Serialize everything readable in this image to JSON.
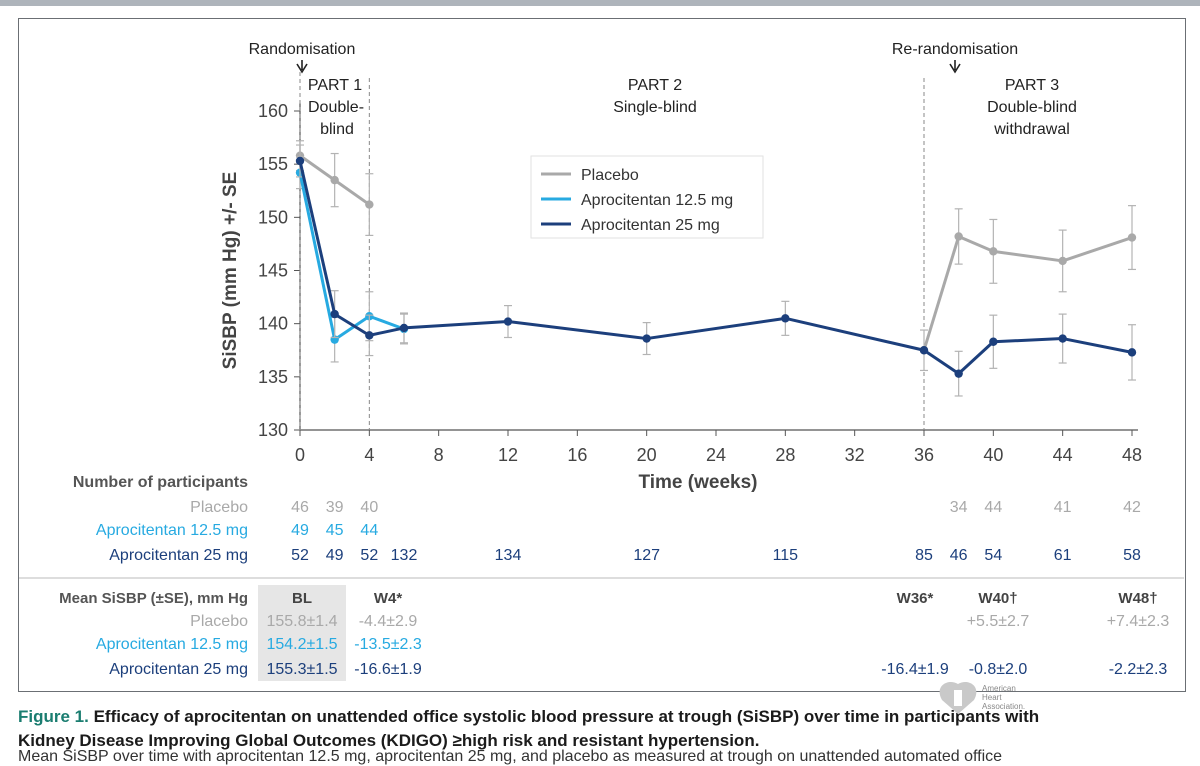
{
  "chart_data": {
    "type": "line",
    "ylabel": "SiSBP (mm Hg) +/- SE",
    "xlabel": "Time (weeks)",
    "ylim": [
      130,
      160
    ],
    "yticks": [
      130,
      135,
      140,
      145,
      150,
      155,
      160
    ],
    "xlim": [
      0,
      48
    ],
    "xticks": [
      0,
      4,
      8,
      12,
      16,
      20,
      24,
      28,
      32,
      36,
      40,
      44,
      48
    ],
    "annotations": {
      "randomisation": "Randomisation",
      "rerandomisation": "Re-randomisation",
      "part1_line1": "PART 1",
      "part1_line2": "Double-",
      "part1_line3": "blind",
      "part2_line1": "PART 2",
      "part2_line2": "Single-blind",
      "part3_line1": "PART 3",
      "part3_line2": "Double-blind",
      "part3_line3": "withdrawal"
    },
    "legend": {
      "placement": "top-center"
    },
    "series": [
      {
        "name": "Placebo",
        "color": "#a9a9a9",
        "points": [
          {
            "x": 0,
            "y": 155.8,
            "se": 1.4
          },
          {
            "x": 2,
            "y": 153.5,
            "se": 2.5
          },
          {
            "x": 4,
            "y": 151.2,
            "se": 2.9
          },
          {
            "x": 36,
            "y": 137.5,
            "se": 0
          },
          {
            "x": 38,
            "y": 148.2,
            "se": 2.6
          },
          {
            "x": 40,
            "y": 146.8,
            "se": 3.0
          },
          {
            "x": 44,
            "y": 145.9,
            "se": 2.9
          },
          {
            "x": 48,
            "y": 148.1,
            "se": 3.0
          }
        ]
      },
      {
        "name": "Aprocitentan 12.5 mg",
        "color": "#27aae1",
        "points": [
          {
            "x": 0,
            "y": 154.2,
            "se": 1.5
          },
          {
            "x": 2,
            "y": 138.5,
            "se": 2.1
          },
          {
            "x": 4,
            "y": 140.7,
            "se": 2.3
          },
          {
            "x": 6,
            "y": 139.5,
            "se": 1.4
          }
        ]
      },
      {
        "name": "Aprocitentan 25 mg",
        "color": "#1c3f7c",
        "points": [
          {
            "x": 0,
            "y": 155.3,
            "se": 1.5
          },
          {
            "x": 2,
            "y": 140.9,
            "se": 2.2
          },
          {
            "x": 4,
            "y": 138.9,
            "se": 1.9
          },
          {
            "x": 6,
            "y": 139.6,
            "se": 1.4
          },
          {
            "x": 12,
            "y": 140.2,
            "se": 1.5
          },
          {
            "x": 20,
            "y": 138.6,
            "se": 1.5
          },
          {
            "x": 28,
            "y": 140.5,
            "se": 1.6
          },
          {
            "x": 36,
            "y": 137.5,
            "se": 1.9
          },
          {
            "x": 38,
            "y": 135.3,
            "se": 2.1
          },
          {
            "x": 40,
            "y": 138.3,
            "se": 2.5
          },
          {
            "x": 44,
            "y": 138.6,
            "se": 2.3
          },
          {
            "x": 48,
            "y": 137.3,
            "se": 2.6
          }
        ]
      }
    ],
    "participants": {
      "header": "Number of participants",
      "rows": [
        {
          "label": "Placebo",
          "color": "#a9a9a9",
          "values": [
            {
              "x": 0,
              "n": "46"
            },
            {
              "x": 2,
              "n": "39"
            },
            {
              "x": 4,
              "n": "40"
            },
            {
              "x": 38,
              "n": "34"
            },
            {
              "x": 40,
              "n": "44"
            },
            {
              "x": 44,
              "n": "41"
            },
            {
              "x": 48,
              "n": "42"
            }
          ]
        },
        {
          "label": "Aprocitentan 12.5 mg",
          "color": "#27aae1",
          "values": [
            {
              "x": 0,
              "n": "49"
            },
            {
              "x": 2,
              "n": "45"
            },
            {
              "x": 4,
              "n": "44"
            }
          ]
        },
        {
          "label": "Aprocitentan 25 mg",
          "color": "#1c3f7c",
          "values": [
            {
              "x": 0,
              "n": "52"
            },
            {
              "x": 2,
              "n": "49"
            },
            {
              "x": 4,
              "n": "52"
            },
            {
              "x": 6,
              "n": "132"
            },
            {
              "x": 12,
              "n": "134"
            },
            {
              "x": 20,
              "n": "127"
            },
            {
              "x": 28,
              "n": "115"
            },
            {
              "x": 36,
              "n": "85"
            },
            {
              "x": 38,
              "n": "46"
            },
            {
              "x": 40,
              "n": "54"
            },
            {
              "x": 44,
              "n": "61"
            },
            {
              "x": 48,
              "n": "58"
            }
          ]
        }
      ]
    },
    "summary": {
      "header": "Mean SiSBP (±SE), mm Hg",
      "columns": {
        "bl": "BL",
        "w4": "W4*",
        "w36": "W36*",
        "w40": "W40†",
        "w48": "W48†"
      },
      "rows": [
        {
          "label": "Placebo",
          "color": "#a9a9a9",
          "bl": "155.8±1.4",
          "w4": "-4.4±2.9",
          "w36": "",
          "w40": "+5.5±2.7",
          "w48": "+7.4±2.3"
        },
        {
          "label": "Aprocitentan 12.5 mg",
          "color": "#27aae1",
          "bl": "154.2±1.5",
          "w4": "-13.5±2.3",
          "w36": "",
          "w40": "",
          "w48": ""
        },
        {
          "label": "Aprocitentan 25 mg",
          "color": "#1c3f7c",
          "bl": "155.3±1.5",
          "w4": "-16.6±1.9",
          "w36": "-16.4±1.9",
          "w40": "-0.8±2.0",
          "w48": "-2.2±2.3"
        }
      ]
    }
  },
  "caption": {
    "figure_label": "Figure 1.",
    "line1_text": " Efficacy of aprocitentan on unattended office systolic blood pressure at trough (SiSBP) over time in participants with",
    "line2_text": "Kidney Disease Improving Global Outcomes (KDIGO) ≥high risk and resistant hypertension.",
    "line3_text": "Mean SiSBP over time with aprocitentan 12.5 mg, aprocitentan 25 mg, and placebo as measured at trough on unattended automated office"
  },
  "logo": {
    "line1": "American",
    "line2": "Heart",
    "line3": "Association."
  }
}
